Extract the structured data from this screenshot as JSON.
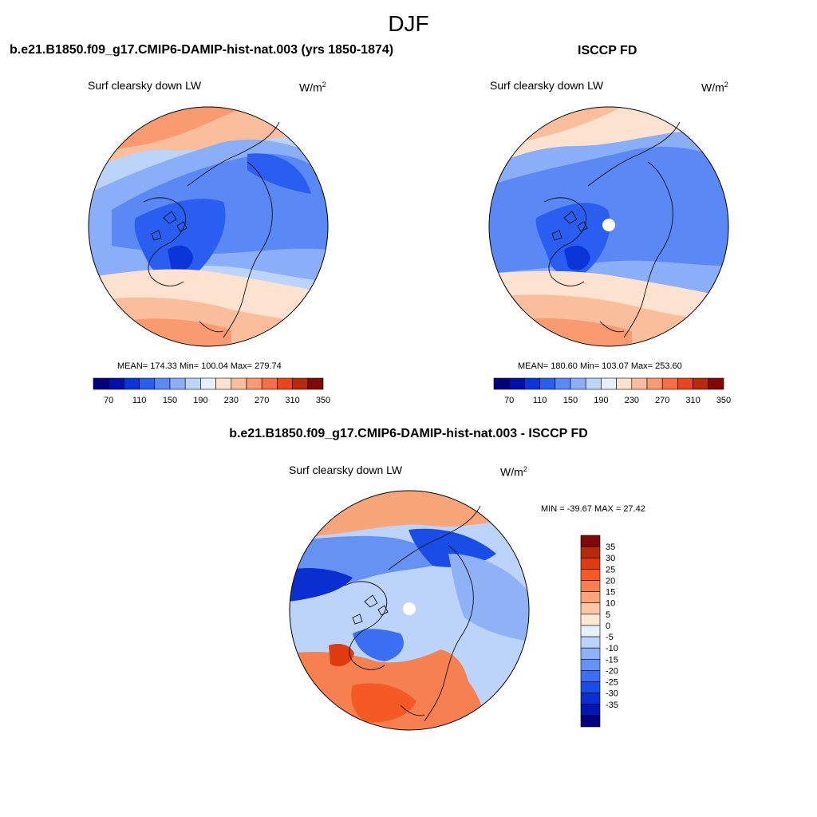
{
  "season": "DJF",
  "panels": {
    "model": {
      "title": "b.e21.B1850.f09_g17.CMIP6-DAMIP-hist-nat.003 (yrs 1850-1874)",
      "variable": "Surf clearsky down LW",
      "units_base": "W/m",
      "units_exp": "2",
      "stats": "MEAN= 174.33  Min= 100.04  Max= 279.74"
    },
    "obs": {
      "title": "ISCCP FD",
      "variable": "Surf clearsky down LW",
      "units_base": "W/m",
      "units_exp": "2",
      "stats": "MEAN= 180.60  Min= 103.07  Max= 253.60"
    },
    "diff": {
      "title": "b.e21.B1850.f09_g17.CMIP6-DAMIP-hist-nat.003 - ISCCP FD",
      "variable": "Surf clearsky down LW",
      "units_base": "W/m",
      "units_exp": "2",
      "stats": "MIN = -39.67 MAX =  27.42"
    }
  },
  "colorbar_abs": {
    "colors": [
      "#00007f",
      "#0010a8",
      "#0a35d8",
      "#2a5ef0",
      "#5a88f5",
      "#8aaef7",
      "#bcd3fa",
      "#e6f0fd",
      "#fde2cf",
      "#fbbe9c",
      "#f99a70",
      "#f66e42",
      "#e8461c",
      "#b82a0a",
      "#7f0808"
    ],
    "labels": [
      "70",
      "110",
      "150",
      "190",
      "230",
      "270",
      "310",
      "350"
    ]
  },
  "colorbar_diff": {
    "colors": [
      "#7f0808",
      "#b82a0a",
      "#e03a10",
      "#f55a26",
      "#f78050",
      "#f9a57a",
      "#fbc8a6",
      "#fde8d6",
      "#e6f0fd",
      "#bcd3fa",
      "#8fb2f7",
      "#6692f3",
      "#3b6ef0",
      "#1a4ce6",
      "#0a2fd0",
      "#0018b0",
      "#00007f"
    ],
    "labels": [
      "35",
      "30",
      "25",
      "20",
      "15",
      "10",
      "5",
      "0",
      "-5",
      "-10",
      "-15",
      "-20",
      "-25",
      "-30",
      "-35"
    ]
  }
}
